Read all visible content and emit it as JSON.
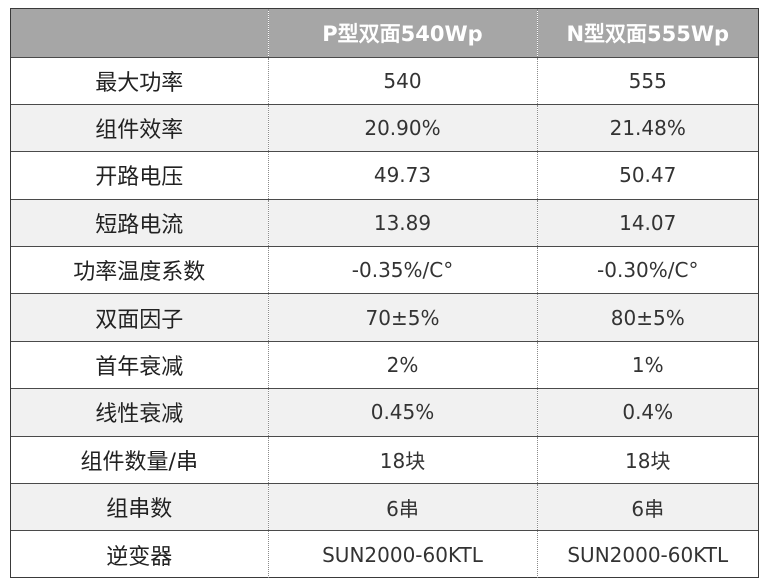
{
  "table": {
    "columns": [
      "",
      "P型双面540Wp",
      "N型双面555Wp"
    ],
    "rows": [
      [
        "最大功率",
        "540",
        "555"
      ],
      [
        "组件效率",
        "20.90%",
        "21.48%"
      ],
      [
        "开路电压",
        "49.73",
        "50.47"
      ],
      [
        "短路电流",
        "13.89",
        "14.07"
      ],
      [
        "功率温度系数",
        "-0.35%/C°",
        "-0.30%/C°"
      ],
      [
        "双面因子",
        "70±5%",
        "80±5%"
      ],
      [
        "首年衰减",
        "2%",
        "1%"
      ],
      [
        "线性衰减",
        "0.45%",
        "0.4%"
      ],
      [
        "组件数量/串",
        "18块",
        "18块"
      ],
      [
        "组串数",
        "6串",
        "6串"
      ],
      [
        "逆变器",
        "SUN2000-60KTL",
        "SUN2000-60KTL"
      ]
    ]
  },
  "colors": {
    "header_background": "#a6a6a6",
    "header_text": "#ffffff",
    "stripe_background": "#f1f1f1",
    "border": "#3a3a3a"
  }
}
